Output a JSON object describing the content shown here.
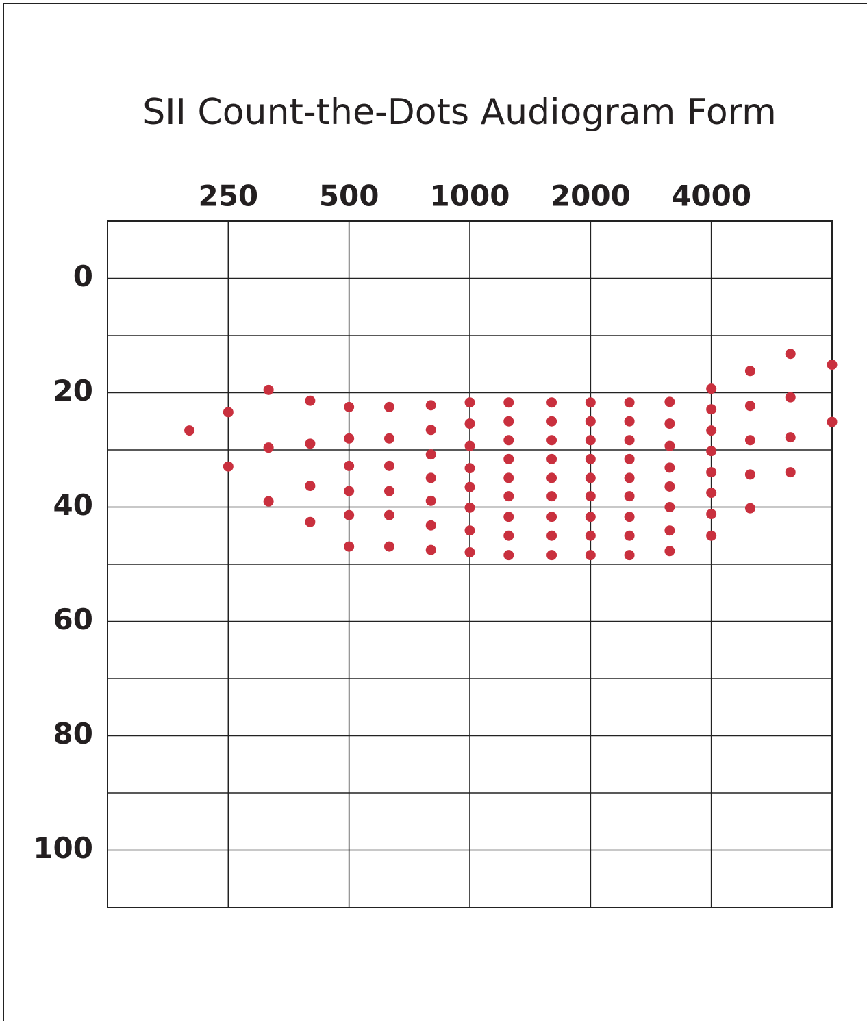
{
  "chart_data": {
    "type": "scatter",
    "title": "SII Count-the-Dots Audiogram Form",
    "x_scale": "log",
    "xlim": [
      125,
      8000
    ],
    "xticks": [
      250,
      500,
      1000,
      2000,
      4000
    ],
    "x_position": "top",
    "ylim": [
      -10,
      110
    ],
    "y_inverted": true,
    "yticks": [
      0,
      20,
      40,
      60,
      80,
      100
    ],
    "y_minor_ticks": [
      10,
      30,
      50,
      70,
      90
    ],
    "grid": true,
    "series": [
      {
        "color": "#c9303e",
        "x": [
          200,
          250,
          250,
          315,
          315,
          315,
          400,
          400,
          400,
          400,
          500,
          500,
          500,
          500,
          500,
          500,
          630,
          630,
          630,
          630,
          630,
          630,
          800,
          800,
          800,
          800,
          800,
          800,
          800,
          1000,
          1000,
          1000,
          1000,
          1000,
          1000,
          1000,
          1000,
          1250,
          1250,
          1250,
          1250,
          1250,
          1250,
          1250,
          1250,
          1250,
          1600,
          1600,
          1600,
          1600,
          1600,
          1600,
          1600,
          1600,
          1600,
          2000,
          2000,
          2000,
          2000,
          2000,
          2000,
          2000,
          2000,
          2000,
          2500,
          2500,
          2500,
          2500,
          2500,
          2500,
          2500,
          2500,
          2500,
          3150,
          3150,
          3150,
          3150,
          3150,
          3150,
          3150,
          3150,
          4000,
          4000,
          4000,
          4000,
          4000,
          4000,
          4000,
          4000,
          5000,
          5000,
          5000,
          5000,
          5000,
          6300,
          6300,
          6300,
          6300,
          8000,
          8000
        ],
        "values": [
          26.6,
          23.4,
          32.9,
          19.5,
          29.6,
          39,
          21.4,
          28.9,
          36.3,
          42.6,
          22.5,
          28,
          32.8,
          37.2,
          41.4,
          46.9,
          22.5,
          28,
          32.8,
          37.2,
          41.4,
          46.9,
          22.2,
          26.5,
          30.8,
          34.9,
          38.9,
          43.2,
          47.5,
          21.7,
          25.4,
          29.3,
          33.2,
          36.5,
          40.1,
          44.1,
          47.9,
          21.7,
          25,
          28.3,
          31.6,
          34.9,
          38.1,
          41.7,
          45,
          48.4,
          21.7,
          25,
          28.3,
          31.6,
          34.9,
          38.1,
          41.7,
          45,
          48.4,
          21.7,
          25,
          28.3,
          31.6,
          34.9,
          38.1,
          41.7,
          45,
          48.4,
          21.7,
          25,
          28.3,
          31.6,
          34.9,
          38.1,
          41.7,
          45,
          48.4,
          21.6,
          25.4,
          29.3,
          33.1,
          36.4,
          40,
          44.1,
          47.7,
          19.3,
          22.9,
          26.6,
          30.2,
          33.9,
          37.5,
          41.2,
          45,
          16.2,
          22.3,
          28.3,
          34.3,
          40.2,
          13.2,
          20.8,
          27.8,
          33.9,
          15.1,
          25.1
        ]
      }
    ]
  }
}
